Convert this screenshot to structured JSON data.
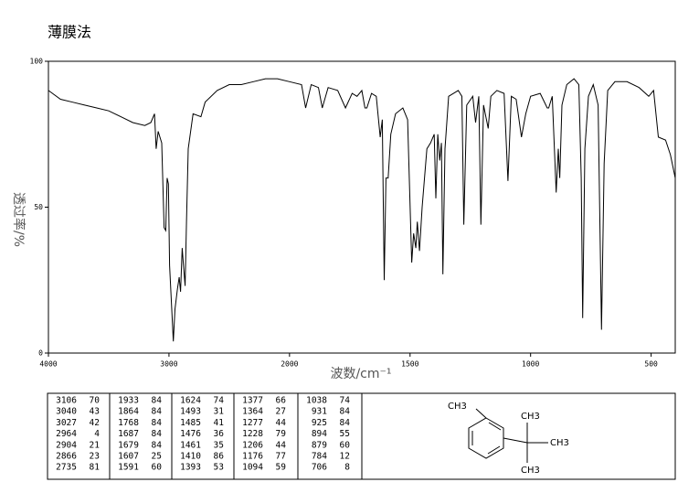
{
  "chart_data": {
    "type": "line",
    "title": "薄膜法",
    "xlabel": "波数/cm⁻¹",
    "ylabel": "透过率/%",
    "xlim": [
      4000,
      400
    ],
    "xticks": [
      4000,
      3000,
      2000,
      1500,
      1000,
      500
    ],
    "ylim": [
      0,
      100
    ],
    "yticks": [
      0,
      50,
      100
    ],
    "color": "#000000",
    "x": [
      4000,
      3900,
      3800,
      3700,
      3600,
      3500,
      3400,
      3300,
      3200,
      3150,
      3120,
      3106,
      3090,
      3060,
      3040,
      3027,
      3015,
      3005,
      2995,
      2964,
      2950,
      2930,
      2915,
      2904,
      2890,
      2880,
      2866,
      2855,
      2840,
      2800,
      2735,
      2700,
      2600,
      2500,
      2400,
      2300,
      2200,
      2100,
      2000,
      1950,
      1933,
      1910,
      1880,
      1864,
      1840,
      1800,
      1768,
      1740,
      1720,
      1700,
      1687,
      1679,
      1660,
      1640,
      1624,
      1615,
      1607,
      1600,
      1591,
      1580,
      1560,
      1530,
      1510,
      1493,
      1485,
      1476,
      1470,
      1461,
      1450,
      1440,
      1430,
      1415,
      1400,
      1393,
      1385,
      1377,
      1370,
      1364,
      1355,
      1340,
      1300,
      1285,
      1277,
      1265,
      1240,
      1228,
      1215,
      1206,
      1195,
      1176,
      1165,
      1140,
      1110,
      1094,
      1080,
      1060,
      1038,
      1020,
      1000,
      960,
      931,
      925,
      910,
      894,
      885,
      879,
      870,
      850,
      820,
      800,
      790,
      784,
      775,
      760,
      740,
      720,
      706,
      695,
      680,
      650,
      600,
      550,
      510,
      490,
      470,
      440,
      420,
      400
    ],
    "values": [
      90,
      87,
      86,
      85,
      84,
      83,
      81,
      79,
      78,
      79,
      82,
      70,
      76,
      72,
      43,
      42,
      60,
      58,
      30,
      4,
      15,
      22,
      26,
      21,
      36,
      30,
      23,
      45,
      70,
      82,
      81,
      86,
      90,
      92,
      92,
      93,
      94,
      94,
      93,
      92,
      84,
      92,
      91,
      84,
      91,
      90,
      84,
      89,
      88,
      90,
      84,
      84,
      89,
      88,
      74,
      80,
      25,
      60,
      60,
      75,
      82,
      84,
      80,
      31,
      41,
      36,
      45,
      35,
      50,
      60,
      70,
      72,
      75,
      53,
      75,
      66,
      72,
      27,
      70,
      88,
      90,
      88,
      44,
      85,
      88,
      79,
      88,
      44,
      85,
      77,
      88,
      90,
      89,
      59,
      88,
      87,
      74,
      82,
      88,
      89,
      84,
      84,
      88,
      55,
      70,
      60,
      85,
      92,
      94,
      92,
      60,
      12,
      70,
      88,
      92,
      85,
      8,
      65,
      90,
      93,
      93,
      91,
      88,
      90,
      74,
      73,
      68,
      60
    ]
  },
  "peak_table": [
    [
      [
        3106,
        70
      ],
      [
        3040,
        43
      ],
      [
        3027,
        42
      ],
      [
        2964,
        4
      ],
      [
        2904,
        21
      ],
      [
        2866,
        23
      ],
      [
        2735,
        81
      ]
    ],
    [
      [
        1933,
        84
      ],
      [
        1864,
        84
      ],
      [
        1768,
        84
      ],
      [
        1687,
        84
      ],
      [
        1679,
        84
      ],
      [
        1607,
        25
      ],
      [
        1591,
        60
      ]
    ],
    [
      [
        1624,
        74
      ],
      [
        1493,
        31
      ],
      [
        1485,
        41
      ],
      [
        1476,
        36
      ],
      [
        1461,
        35
      ],
      [
        1410,
        86
      ],
      [
        1393,
        53
      ]
    ],
    [
      [
        1377,
        66
      ],
      [
        1364,
        27
      ],
      [
        1277,
        44
      ],
      [
        1228,
        79
      ],
      [
        1206,
        44
      ],
      [
        1176,
        77
      ],
      [
        1094,
        59
      ]
    ],
    [
      [
        1038,
        74
      ],
      [
        931,
        84
      ],
      [
        925,
        84
      ],
      [
        894,
        55
      ],
      [
        879,
        60
      ],
      [
        784,
        12
      ],
      [
        706,
        8
      ]
    ]
  ],
  "structure_labels": [
    "CH3",
    "CH3",
    "CH3",
    "CH3"
  ]
}
